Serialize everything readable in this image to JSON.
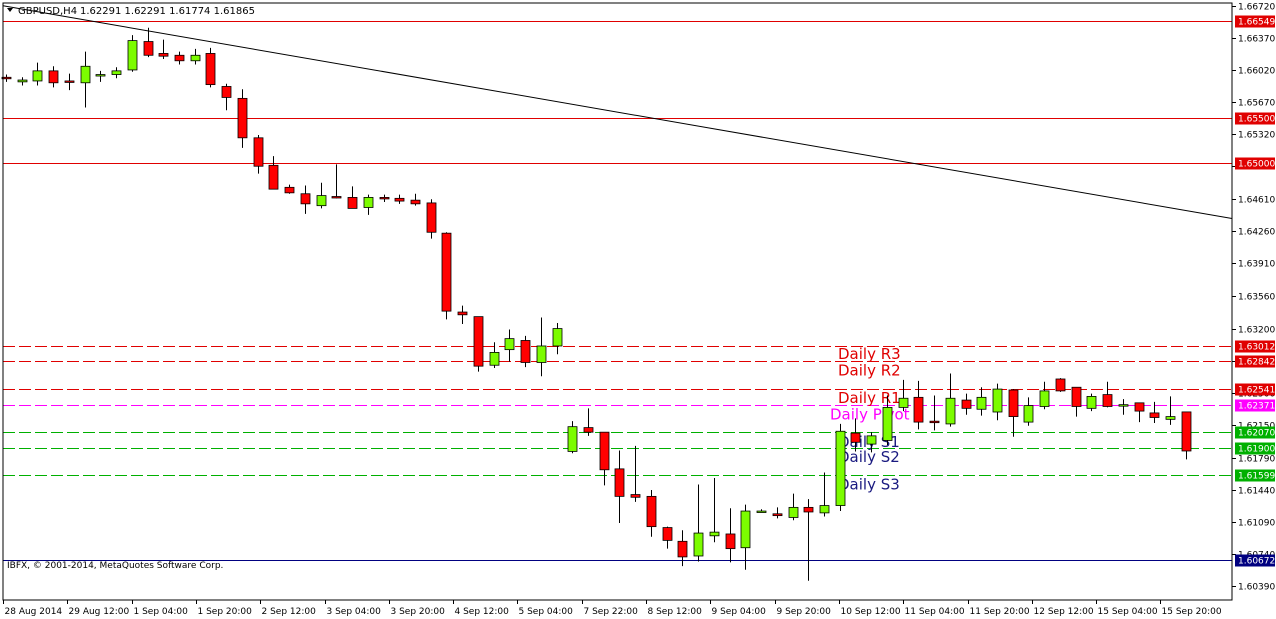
{
  "chart_title": {
    "symbol": "GBPUSD,H4",
    "values": "1.62291 1.62291 1.61774 1.61865"
  },
  "copyright": "IBFX, © 2001-2014, MetaQuotes Software Corp.",
  "colors": {
    "background": "#ffffff",
    "bull_candle": "#7cfc00",
    "bear_candle": "#ff0000",
    "resistance": "#e00000",
    "pivot": "#ff00ff",
    "support": "#00b000",
    "support_text": "#1a1a80",
    "bid_line": "#000080"
  },
  "chart_data": {
    "type": "candlestick",
    "symbol": "GBPUSD",
    "timeframe": "H4",
    "ylim": [
      1.6024,
      1.6675
    ],
    "y_ticks": [
      "1.66720",
      "1.66370",
      "1.66020",
      "1.65670",
      "1.65320",
      "1.64970",
      "1.64610",
      "1.64260",
      "1.63910",
      "1.63560",
      "1.63200",
      "1.62850",
      "1.62500",
      "1.62150",
      "1.61790",
      "1.61440",
      "1.61090",
      "1.60740",
      "1.60390"
    ],
    "x_ticks": [
      "28 Aug 2014",
      "29 Aug 12:00",
      "1 Sep 04:00",
      "1 Sep 20:00",
      "2 Sep 12:00",
      "3 Sep 04:00",
      "3 Sep 20:00",
      "4 Sep 12:00",
      "5 Sep 04:00",
      "7 Sep 22:00",
      "8 Sep 12:00",
      "9 Sep 04:00",
      "9 Sep 20:00",
      "10 Sep 12:00",
      "11 Sep 04:00",
      "11 Sep 20:00",
      "12 Sep 12:00",
      "15 Sep 04:00",
      "15 Sep 20:00"
    ],
    "candles": [
      {
        "o": 1.6594,
        "h": 1.6597,
        "l": 1.6589,
        "c": 1.6593
      },
      {
        "o": 1.6589,
        "h": 1.6594,
        "l": 1.6585,
        "c": 1.6591
      },
      {
        "o": 1.659,
        "h": 1.661,
        "l": 1.6585,
        "c": 1.6601
      },
      {
        "o": 1.6601,
        "h": 1.6606,
        "l": 1.6583,
        "c": 1.6588
      },
      {
        "o": 1.659,
        "h": 1.6598,
        "l": 1.658,
        "c": 1.6589
      },
      {
        "o": 1.6588,
        "h": 1.6622,
        "l": 1.6561,
        "c": 1.6606
      },
      {
        "o": 1.6596,
        "h": 1.6601,
        "l": 1.6589,
        "c": 1.6597
      },
      {
        "o": 1.6597,
        "h": 1.6605,
        "l": 1.6593,
        "c": 1.6601
      },
      {
        "o": 1.6602,
        "h": 1.664,
        "l": 1.66,
        "c": 1.6634
      },
      {
        "o": 1.6633,
        "h": 1.6648,
        "l": 1.6616,
        "c": 1.6618
      },
      {
        "o": 1.662,
        "h": 1.6635,
        "l": 1.6614,
        "c": 1.6617
      },
      {
        "o": 1.6618,
        "h": 1.6622,
        "l": 1.6608,
        "c": 1.6612
      },
      {
        "o": 1.6612,
        "h": 1.6625,
        "l": 1.6608,
        "c": 1.6618
      },
      {
        "o": 1.662,
        "h": 1.6626,
        "l": 1.6583,
        "c": 1.6586
      },
      {
        "o": 1.6584,
        "h": 1.6587,
        "l": 1.6558,
        "c": 1.6572
      },
      {
        "o": 1.6571,
        "h": 1.6581,
        "l": 1.6517,
        "c": 1.6528
      },
      {
        "o": 1.6528,
        "h": 1.6531,
        "l": 1.6489,
        "c": 1.6497
      },
      {
        "o": 1.6498,
        "h": 1.6508,
        "l": 1.6472,
        "c": 1.6472
      },
      {
        "o": 1.6474,
        "h": 1.6477,
        "l": 1.6467,
        "c": 1.6468
      },
      {
        "o": 1.6467,
        "h": 1.6476,
        "l": 1.6445,
        "c": 1.6456
      },
      {
        "o": 1.6454,
        "h": 1.6479,
        "l": 1.6451,
        "c": 1.6465
      },
      {
        "o": 1.6464,
        "h": 1.6499,
        "l": 1.6462,
        "c": 1.6463
      },
      {
        "o": 1.6463,
        "h": 1.6475,
        "l": 1.6451,
        "c": 1.6451
      },
      {
        "o": 1.6452,
        "h": 1.6466,
        "l": 1.6444,
        "c": 1.6463
      },
      {
        "o": 1.6463,
        "h": 1.6466,
        "l": 1.6458,
        "c": 1.6462
      },
      {
        "o": 1.6462,
        "h": 1.6466,
        "l": 1.6456,
        "c": 1.6459
      },
      {
        "o": 1.646,
        "h": 1.6467,
        "l": 1.6454,
        "c": 1.6456
      },
      {
        "o": 1.6457,
        "h": 1.6461,
        "l": 1.6418,
        "c": 1.6425
      },
      {
        "o": 1.6424,
        "h": 1.6425,
        "l": 1.633,
        "c": 1.6339
      },
      {
        "o": 1.6338,
        "h": 1.6345,
        "l": 1.6325,
        "c": 1.6335
      },
      {
        "o": 1.6333,
        "h": 1.6333,
        "l": 1.6273,
        "c": 1.6279
      },
      {
        "o": 1.628,
        "h": 1.6305,
        "l": 1.6277,
        "c": 1.6294
      },
      {
        "o": 1.6297,
        "h": 1.6319,
        "l": 1.6284,
        "c": 1.6309
      },
      {
        "o": 1.6307,
        "h": 1.6312,
        "l": 1.6278,
        "c": 1.6283
      },
      {
        "o": 1.6283,
        "h": 1.6332,
        "l": 1.6268,
        "c": 1.6301
      },
      {
        "o": 1.6301,
        "h": 1.6326,
        "l": 1.6292,
        "c": 1.632
      },
      {
        "o": 1.6186,
        "h": 1.6219,
        "l": 1.6184,
        "c": 1.6213
      },
      {
        "o": 1.6212,
        "h": 1.6233,
        "l": 1.6203,
        "c": 1.6207
      },
      {
        "o": 1.6207,
        "h": 1.6207,
        "l": 1.6149,
        "c": 1.6166
      },
      {
        "o": 1.6167,
        "h": 1.6187,
        "l": 1.6108,
        "c": 1.6137
      },
      {
        "o": 1.6139,
        "h": 1.6192,
        "l": 1.6131,
        "c": 1.6136
      },
      {
        "o": 1.6137,
        "h": 1.6144,
        "l": 1.6093,
        "c": 1.6104
      },
      {
        "o": 1.6103,
        "h": 1.6104,
        "l": 1.608,
        "c": 1.6089
      },
      {
        "o": 1.6088,
        "h": 1.61,
        "l": 1.6061,
        "c": 1.6071
      },
      {
        "o": 1.6072,
        "h": 1.615,
        "l": 1.6066,
        "c": 1.6097
      },
      {
        "o": 1.6094,
        "h": 1.6157,
        "l": 1.6087,
        "c": 1.6098
      },
      {
        "o": 1.6096,
        "h": 1.6124,
        "l": 1.6065,
        "c": 1.608
      },
      {
        "o": 1.6081,
        "h": 1.6128,
        "l": 1.6057,
        "c": 1.6121
      },
      {
        "o": 1.612,
        "h": 1.6123,
        "l": 1.612,
        "c": 1.6121
      },
      {
        "o": 1.6118,
        "h": 1.6125,
        "l": 1.6113,
        "c": 1.6116
      },
      {
        "o": 1.6114,
        "h": 1.614,
        "l": 1.6111,
        "c": 1.6125
      },
      {
        "o": 1.6125,
        "h": 1.6134,
        "l": 1.6045,
        "c": 1.612
      },
      {
        "o": 1.6119,
        "h": 1.6163,
        "l": 1.6115,
        "c": 1.6127
      },
      {
        "o": 1.6127,
        "h": 1.6216,
        "l": 1.6121,
        "c": 1.6208
      },
      {
        "o": 1.6206,
        "h": 1.6222,
        "l": 1.6186,
        "c": 1.6196
      },
      {
        "o": 1.6194,
        "h": 1.6207,
        "l": 1.6185,
        "c": 1.6203
      },
      {
        "o": 1.6198,
        "h": 1.6247,
        "l": 1.6193,
        "c": 1.6234
      },
      {
        "o": 1.6234,
        "h": 1.6264,
        "l": 1.623,
        "c": 1.6244
      },
      {
        "o": 1.6245,
        "h": 1.6263,
        "l": 1.621,
        "c": 1.6218
      },
      {
        "o": 1.6219,
        "h": 1.6247,
        "l": 1.6209,
        "c": 1.6218
      },
      {
        "o": 1.6216,
        "h": 1.6271,
        "l": 1.6213,
        "c": 1.6244
      },
      {
        "o": 1.6242,
        "h": 1.6249,
        "l": 1.6226,
        "c": 1.6233
      },
      {
        "o": 1.6232,
        "h": 1.6256,
        "l": 1.6225,
        "c": 1.6245
      },
      {
        "o": 1.6229,
        "h": 1.626,
        "l": 1.622,
        "c": 1.6254
      },
      {
        "o": 1.6253,
        "h": 1.6254,
        "l": 1.6202,
        "c": 1.6224
      },
      {
        "o": 1.6218,
        "h": 1.6245,
        "l": 1.6214,
        "c": 1.6236
      },
      {
        "o": 1.6235,
        "h": 1.6262,
        "l": 1.6232,
        "c": 1.6252
      },
      {
        "o": 1.6265,
        "h": 1.6266,
        "l": 1.6251,
        "c": 1.6252
      },
      {
        "o": 1.6256,
        "h": 1.6256,
        "l": 1.6224,
        "c": 1.6235
      },
      {
        "o": 1.6233,
        "h": 1.6249,
        "l": 1.623,
        "c": 1.6246
      },
      {
        "o": 1.6248,
        "h": 1.6262,
        "l": 1.6234,
        "c": 1.6235
      },
      {
        "o": 1.6237,
        "h": 1.6243,
        "l": 1.6226,
        "c": 1.6237
      },
      {
        "o": 1.6239,
        "h": 1.6239,
        "l": 1.6218,
        "c": 1.623
      },
      {
        "o": 1.6228,
        "h": 1.624,
        "l": 1.6217,
        "c": 1.6223
      },
      {
        "o": 1.6221,
        "h": 1.6246,
        "l": 1.6215,
        "c": 1.6224
      },
      {
        "o": 1.62291,
        "h": 1.62291,
        "l": 1.61774,
        "c": 1.61865
      }
    ],
    "levels": [
      {
        "name": "",
        "price": 1.66549,
        "label": "1.66549",
        "style": "solid",
        "color": "#e00000"
      },
      {
        "name": "",
        "price": 1.655,
        "label": "1.65500",
        "style": "solid",
        "color": "#e00000"
      },
      {
        "name": "",
        "price": 1.65,
        "label": "1.65000",
        "style": "solid",
        "color": "#e00000"
      },
      {
        "name": "Daily R3",
        "price": 1.63012,
        "label": "1.63012",
        "style": "dashed",
        "color": "#e00000"
      },
      {
        "name": "Daily R2",
        "price": 1.62842,
        "label": "1.62842",
        "style": "dashed",
        "color": "#e00000"
      },
      {
        "name": "Daily R1",
        "price": 1.62541,
        "label": "1.62541",
        "style": "dashed",
        "color": "#e00000"
      },
      {
        "name": "Daily Pivot",
        "price": 1.62371,
        "label": "1.62371",
        "style": "dashed",
        "color": "#ff00ff"
      },
      {
        "name": "Daily S1",
        "price": 1.6207,
        "label": "1.62070",
        "style": "dashed",
        "color": "#00b000"
      },
      {
        "name": "Daily S2",
        "price": 1.619,
        "label": "1.61900",
        "style": "dashed",
        "color": "#00b000"
      },
      {
        "name": "Daily S3",
        "price": 1.61599,
        "label": "1.61599",
        "style": "dashed",
        "color": "#00b000"
      },
      {
        "name": "",
        "price": 1.60672,
        "label": "1.60672",
        "style": "solid",
        "color": "#000080"
      }
    ],
    "trendline": {
      "start_price": 1.6672,
      "end_price": 1.644
    },
    "grid": false
  }
}
